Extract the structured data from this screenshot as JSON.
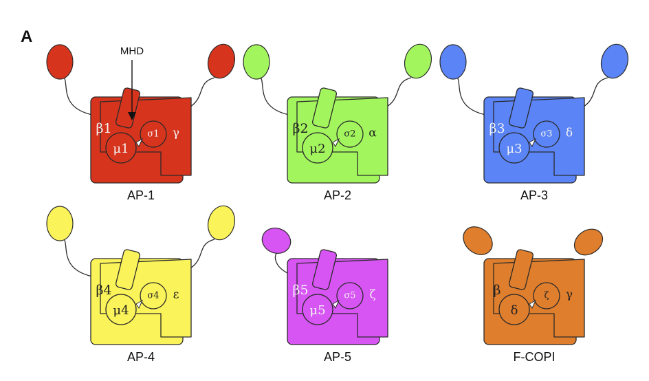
{
  "figure": {
    "panel_label": "A",
    "annotation": {
      "label": "MHD"
    },
    "complexes": [
      {
        "name": "AP-1",
        "color": "#d7341e",
        "ears": "both",
        "big_left": "β1",
        "big_right": "γ",
        "medium": "μ1",
        "small": "σ1"
      },
      {
        "name": "AP-2",
        "color": "#a3f55e",
        "ears": "both",
        "big_left": "β2",
        "big_right": "α",
        "medium": "μ2",
        "small": "σ2"
      },
      {
        "name": "AP-3",
        "color": "#5b84f7",
        "ears": "both",
        "big_left": "β3",
        "big_right": "δ",
        "medium": "μ3",
        "small": "σ3"
      },
      {
        "name": "AP-4",
        "color": "#fbf35a",
        "ears": "both",
        "big_left": "β4",
        "big_right": "ε",
        "medium": "μ4",
        "small": "σ4"
      },
      {
        "name": "AP-5",
        "color": "#d755f3",
        "ears": "left-short",
        "big_left": "β5",
        "big_right": "ζ",
        "medium": "μ5",
        "small": "σ5"
      },
      {
        "name": "F-COPI",
        "color": "#df7e2d",
        "ears": "attached",
        "big_left": "β",
        "big_right": "γ",
        "medium": "δ",
        "small": "ζ"
      }
    ]
  }
}
